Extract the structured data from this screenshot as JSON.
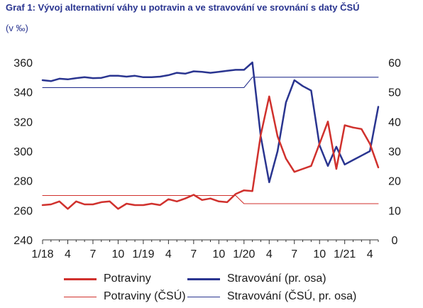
{
  "title": "Graf 1: Vývoj alternativní váhy u potravin a ve stravování ve srovnání s daty ČSÚ",
  "subtitle": "(v ‰)",
  "colors": {
    "red": "#d0312d",
    "blue": "#2a3590"
  },
  "chart_data": {
    "type": "line",
    "x_tick_labels": [
      "1/18",
      "4",
      "7",
      "10",
      "1/19",
      "4",
      "7",
      "10",
      "1/20",
      "4",
      "7",
      "10",
      "1/21",
      "4"
    ],
    "left_axis": {
      "ticks": [
        "240",
        "260",
        "280",
        "300",
        "320",
        "340",
        "360"
      ],
      "ylim": [
        240,
        360
      ]
    },
    "right_axis": {
      "ticks": [
        "0",
        "10",
        "20",
        "30",
        "40",
        "50",
        "60"
      ],
      "ylim": [
        0,
        60
      ]
    },
    "x_start": "2018-01",
    "x_count": 41,
    "grid": false,
    "legend_position": "bottom",
    "series": [
      {
        "name": "Potraviny",
        "axis": "left",
        "color": "#d0312d",
        "width": 2.5,
        "values": [
          263.5,
          264,
          266,
          261,
          266,
          264,
          264,
          265.5,
          266,
          261,
          264.5,
          263.5,
          263.5,
          264.5,
          263.5,
          267.5,
          266,
          268,
          270.5,
          267,
          268,
          266,
          265.5,
          271,
          273.5,
          273,
          311,
          337,
          310,
          295,
          286,
          288,
          290,
          305,
          320,
          288,
          317.5,
          316,
          315,
          305,
          289
        ]
      },
      {
        "name": "Potraviny (ČSÚ)",
        "axis": "left",
        "color": "#d0312d",
        "width": 1.1,
        "values": [
          270,
          270,
          270,
          270,
          270,
          270,
          270,
          270,
          270,
          270,
          270,
          270,
          270,
          270,
          270,
          270,
          270,
          270,
          270,
          270,
          270,
          270,
          270,
          270,
          264.5,
          264.5,
          264.5,
          264.5,
          264.5,
          264.5,
          264.5,
          264.5,
          264.5,
          264.5,
          264.5,
          264.5,
          264.5,
          264.5,
          264.5,
          264.5,
          264.5
        ]
      },
      {
        "name": "Stravování (pr. osa)",
        "axis": "right",
        "color": "#2a3590",
        "width": 2.5,
        "values": [
          54,
          53.7,
          54.5,
          54.3,
          54.7,
          55,
          54.7,
          54.8,
          55.5,
          55.5,
          55.2,
          55.5,
          55,
          55,
          55.2,
          55.7,
          56.5,
          56.2,
          57,
          56.8,
          56.5,
          56.8,
          57.2,
          57.5,
          57.5,
          60,
          35,
          19.5,
          30,
          46.5,
          54,
          52,
          50.5,
          32,
          25,
          31.5,
          25.5,
          27,
          28.5,
          30,
          45
        ]
      },
      {
        "name": "Stravování (ČSÚ, pr. osa)",
        "axis": "right",
        "color": "#2a3590",
        "width": 1.1,
        "values": [
          51.5,
          51.5,
          51.5,
          51.5,
          51.5,
          51.5,
          51.5,
          51.5,
          51.5,
          51.5,
          51.5,
          51.5,
          51.5,
          51.5,
          51.5,
          51.5,
          51.5,
          51.5,
          51.5,
          51.5,
          51.5,
          51.5,
          51.5,
          51.5,
          51.5,
          55,
          55,
          55,
          55,
          55,
          55,
          55,
          55,
          55,
          55,
          55,
          55,
          55,
          55,
          55,
          55
        ]
      }
    ]
  }
}
